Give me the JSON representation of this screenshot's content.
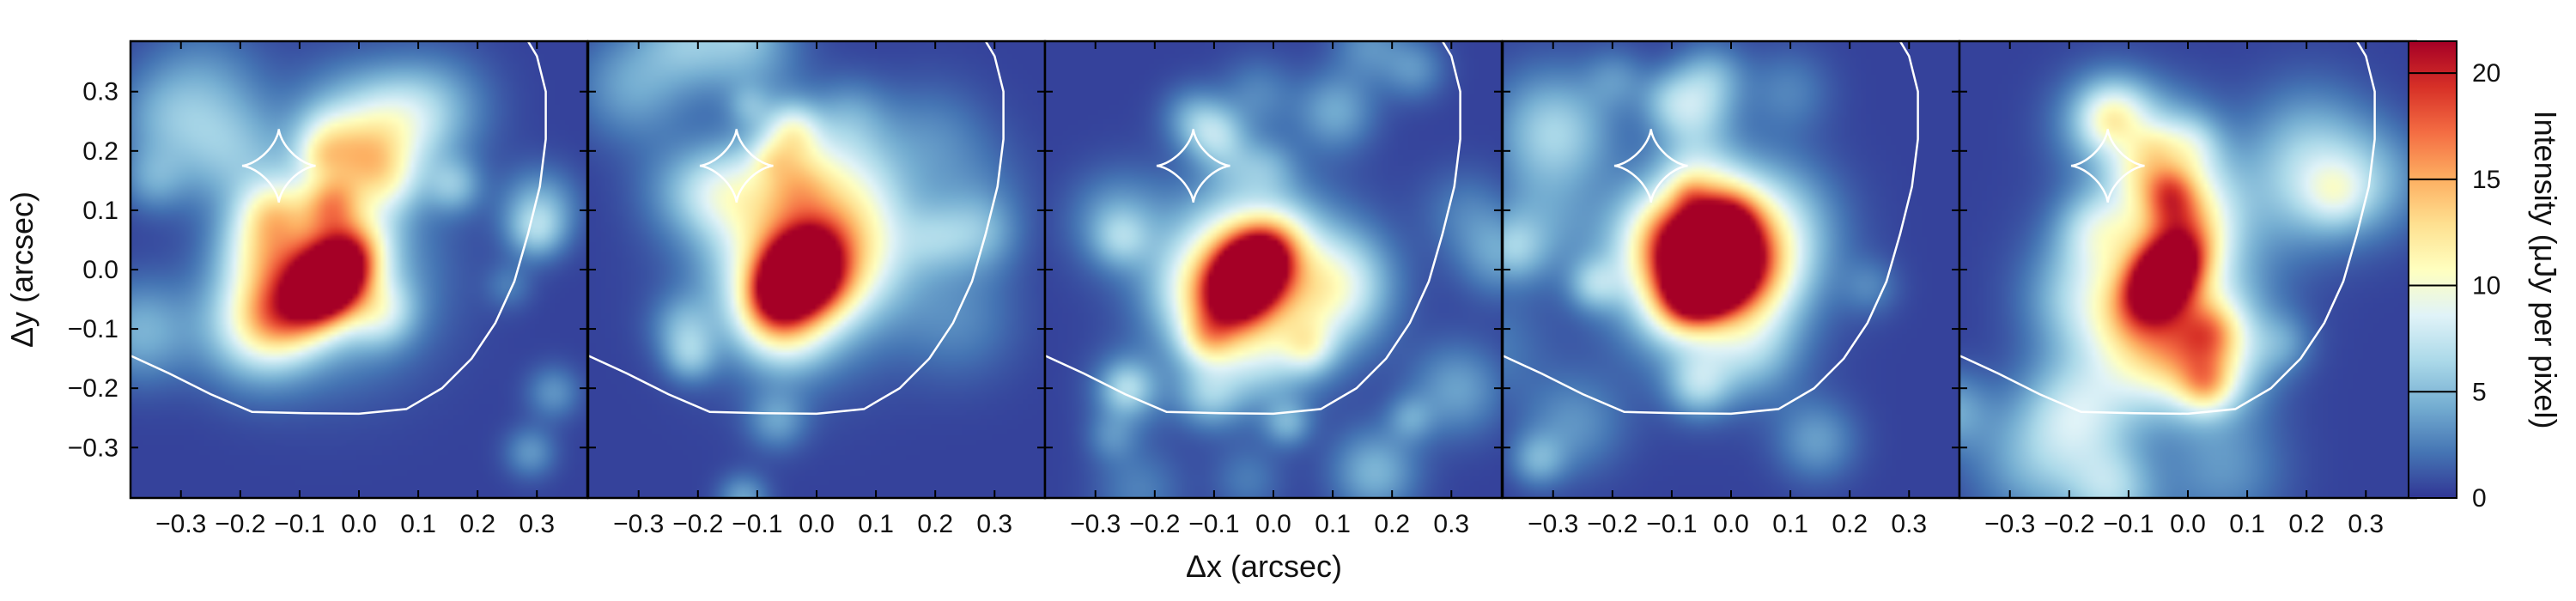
{
  "chart_data": {
    "type": "heatmap",
    "panel_count": 5,
    "xlabel": "Δx (arcsec)",
    "ylabel": "Δy (arcsec)",
    "xlim": [
      -0.385,
      0.385
    ],
    "ylim": [
      -0.385,
      0.385
    ],
    "x_ticks": [
      -0.3,
      -0.2,
      -0.1,
      0.0,
      0.1,
      0.2,
      0.3
    ],
    "x_tick_labels": [
      "−0.3",
      "−0.2",
      "−0.1",
      "0.0",
      "0.1",
      "0.2",
      "0.3"
    ],
    "y_ticks": [
      0.3,
      0.2,
      0.1,
      0.0,
      -0.1,
      -0.2,
      -0.3
    ],
    "y_tick_labels": [
      "0.3",
      "0.2",
      "0.1",
      "0.0",
      "−0.1",
      "−0.2",
      "−0.3"
    ],
    "colorbar": {
      "label": "Intensity (μJy per pixel)",
      "range": [
        0,
        21.5
      ],
      "ticks": [
        0,
        5,
        10,
        15,
        20
      ],
      "tick_labels": [
        "0",
        "5",
        "10",
        "15",
        "20"
      ],
      "colormap": "RdYlBu_r"
    },
    "source": {
      "peak_center": [
        -0.04,
        -0.01
      ],
      "peak_intensity": 21,
      "sigma_major": 0.058,
      "sigma_minor": 0.038,
      "orientation_deg": 52
    },
    "caustic": {
      "type": "astroid",
      "center": [
        -0.135,
        0.175
      ],
      "radius": 0.062,
      "color": "#ffffff"
    },
    "critical_curve": {
      "color": "#ffffff",
      "points": [
        [
          0.285,
          0.385
        ],
        [
          0.3,
          0.36
        ],
        [
          0.315,
          0.3
        ],
        [
          0.315,
          0.22
        ],
        [
          0.305,
          0.14
        ],
        [
          0.285,
          0.06
        ],
        [
          0.262,
          -0.02
        ],
        [
          0.23,
          -0.09
        ],
        [
          0.19,
          -0.15
        ],
        [
          0.14,
          -0.2
        ],
        [
          0.08,
          -0.235
        ],
        [
          0.0,
          -0.243
        ],
        [
          -0.09,
          -0.242
        ],
        [
          -0.18,
          -0.24
        ],
        [
          -0.25,
          -0.21
        ],
        [
          -0.32,
          -0.175
        ],
        [
          -0.385,
          -0.145
        ]
      ]
    },
    "panels": [
      {
        "seed": 3
      },
      {
        "seed": 11
      },
      {
        "seed": 19
      },
      {
        "seed": 27
      },
      {
        "seed": 35
      }
    ]
  }
}
